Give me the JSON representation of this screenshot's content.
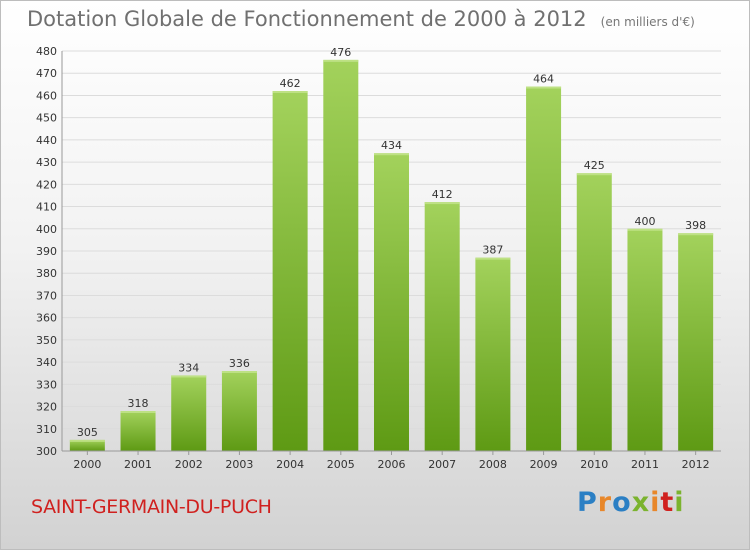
{
  "header": {
    "title": "Dotation Globale de Fonctionnement de 2000 à 2012",
    "subtitle": "(en milliers d'€)"
  },
  "footer": {
    "commune": "SAINT-GERMAIN-DU-PUCH",
    "logo_text": "Proxiti",
    "logo_colors": [
      "#2b7fc4",
      "#e8872a",
      "#2b7fc4",
      "#7bb32e",
      "#e8872a",
      "#d0211f",
      "#7bb32e"
    ]
  },
  "colors": {
    "bar_top": "#a3d25c",
    "bar_bottom": "#5e9a14",
    "grid": "#dcdcdc",
    "axis_text": "#333333"
  },
  "chart_data": {
    "type": "bar",
    "categories": [
      "2000",
      "2001",
      "2002",
      "2003",
      "2004",
      "2005",
      "2006",
      "2007",
      "2008",
      "2009",
      "2010",
      "2011",
      "2012"
    ],
    "values": [
      305,
      318,
      334,
      336,
      462,
      476,
      434,
      412,
      387,
      464,
      425,
      400,
      398
    ],
    "ylim": [
      300,
      480
    ],
    "ytick_step": 10,
    "grid": true,
    "data_labels": true
  }
}
